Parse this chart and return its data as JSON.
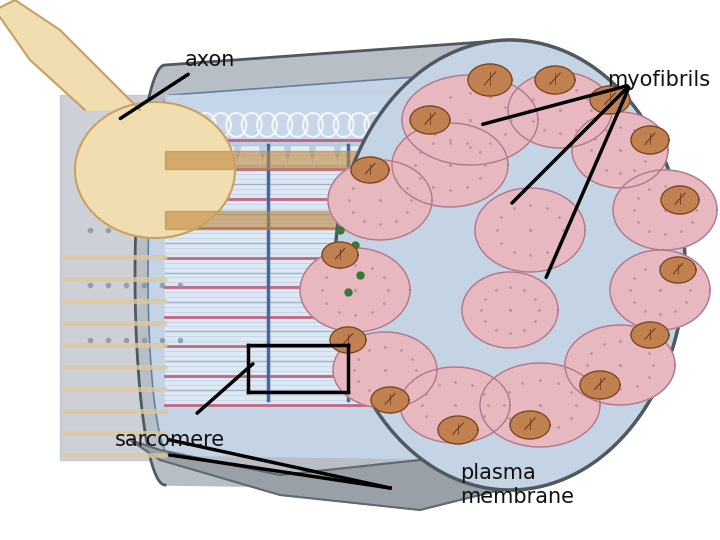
{
  "background_color": "#ffffff",
  "fig_w": 7.2,
  "fig_h": 5.4,
  "dpi": 100,
  "label_axon": "axon",
  "label_myofibrils": "myofibrils",
  "label_sarcomere": "sarcomere",
  "label_plasma": "plasma\nmembrane",
  "label_fontsize": 15,
  "label_color": "#111111",
  "colors": {
    "steel_light": "#b8bec6",
    "steel_mid": "#9aa0a8",
    "steel_dark": "#606870",
    "steel_outline": "#505860",
    "light_blue": "#c4d4e4",
    "mid_blue": "#b0c4d8",
    "blue_outline": "#6080a0",
    "cream": "#f0ddb0",
    "cream_dark": "#e0c898",
    "cream_outline": "#c8a060",
    "pink_myofibril": "#e8b8c0",
    "pink_outline": "#b07888",
    "brown_mito": "#a06030",
    "brown_mito_light": "#c08050",
    "brown_outline": "#704020",
    "purple_line": "#c05878",
    "teal_line": "#70a0b0",
    "green_dot": "#387838",
    "white": "#ffffff",
    "near_white": "#f0f4f8",
    "gray_dots": "#8090a0"
  }
}
